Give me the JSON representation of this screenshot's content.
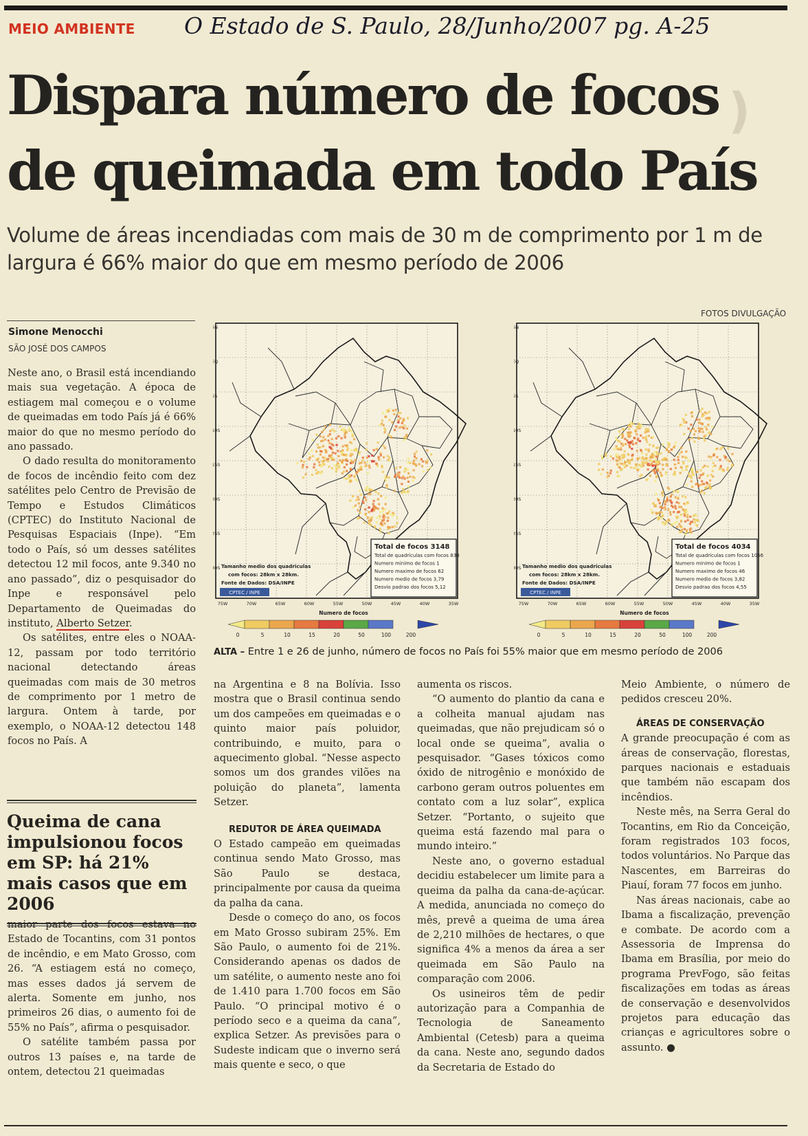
{
  "header": {
    "section": "MEIO AMBIENTE",
    "handwritten_note": "O Estado de S. Paulo, 28/Junho/2007    pg. A-25"
  },
  "headline": "Dispara número de focos de queimada em todo País",
  "subheadline": "Volume de áreas incendiadas com mais de 30 m de comprimento por 1 m de largura é 66% maior do que em mesmo período de 2006",
  "photo_credit": "FOTOS DIVULGAÇÃO",
  "byline": {
    "author": "Simone Menocchi",
    "place": "SÃO JOSÉ DOS CAMPOS"
  },
  "col1_top": [
    "Neste ano, o Brasil está incendiando mais sua vegetação. A época de estiagem mal começou e o volume de queimadas em todo País já é 66% maior do que no mesmo período do ano passado.",
    "O dado resulta do monitoramento de focos de incêndio feito com dez satélites pelo Centro de Previsão de Tempo e Estudos Climáticos (CPTEC) do Instituto Nacional de Pesquisas Espaciais (Inpe). “Em todo o País, só um desses satélites detectou 12 mil focos, ante 9.340 no ano passado”, diz o pesquisador do Inpe e responsável pelo Departamento de Queimadas do instituto,",
    "Alberto Setzer",
    "Os satélites, entre eles o NOAA-12, passam por todo território nacional detectando áreas queimadas com mais de 30 metros de comprimento por 1 metro de largura. Ontem à tarde, por exemplo, o NOAA-12 detectou 148 focos no País. A"
  ],
  "pull_quote": "Queima de cana impulsionou focos em SP: há 21% mais casos que em 2006",
  "col1_bottom": [
    "maior parte dos focos estava no Estado de Tocantins, com 31 pontos de incêndio, e em Mato Grosso, com 26. “A estiagem está no começo, mas esses dados já servem de alerta. Somente em junho, nos primeiros 26 dias, o aumento foi de 55% no País”, afirma o pesquisador.",
    "O satélite também passa por outros 13 países e, na tarde de ontem, detectou 21 queimadas"
  ],
  "col2": [
    "na Argentina e 8 na Bolívia. Isso mostra que o Brasil continua sendo um dos campeões em queimadas e o quinto maior país poluidor, contribuindo, e muito, para o aquecimento global. “Nesse aspecto somos um dos grandes vilões na poluição do planeta”, lamenta Setzer.",
    "REDUTOR DE ÁREA QUEIMADA",
    "O Estado campeão em queimadas continua sendo Mato Grosso, mas São Paulo se destaca, principalmente por causa da queima da palha da cana.",
    "Desde o começo do ano, os focos em Mato Grosso subiram 25%. Em São Paulo, o aumento foi de 21%. Considerando apenas os dados de um satélite, o aumento neste ano foi de 1.410 para 1.700 focos em São Paulo. “O principal motivo é o período seco e a queima da cana”, explica Setzer. As previsões para o Sudeste indicam que o inverno será mais quente e seco, o que"
  ],
  "col3": [
    "aumenta os riscos.",
    "“O aumento do plantio da cana e a colheita manual ajudam nas queimadas, que não prejudicam só o local onde se queima”, avalia o pesquisador. “Gases tóxicos como óxido de nitrogênio e monóxido de carbono geram outros poluentes em contato com a luz solar”, explica Setzer. “Portanto, o sujeito que queima está fazendo mal para o mundo inteiro.”",
    "Neste ano, o governo estadual decidiu estabelecer um limite para a queima da palha da cana-de-açúcar. A medida, anunciada no começo do mês, prevê a queima de uma área de 2,210 milhões de hectares, o que significa 4% a menos da área a ser queimada em São Paulo na comparação com 2006.",
    "Os usineiros têm de pedir autorização para a Companhia de Tecnologia de Saneamento Ambiental (Cetesb) para a queima da cana. Neste ano, segundo dados da Secretaria de Estado do"
  ],
  "col4": [
    "Meio Ambiente, o número de pedidos cresceu 20%.",
    "ÁREAS DE CONSERVAÇÃO",
    "A grande preocupação é com as áreas de conservação, florestas, parques nacionais e estaduais que também não escapam dos incêndios.",
    "Neste mês, na Serra Geral do Tocantins, em Rio da Conceição, foram registrados 103 focos, todos voluntários. No Parque das Nascentes, em Barreiras do Piauí, foram 77 focos em junho.",
    "Nas áreas nacionais, cabe ao Ibama a fiscalização, prevenção e combate. De acordo com a Assessoria de Imprensa do Ibama em Brasília, por meio do programa PrevFogo, são feitas fiscalizações em todas as áreas de conservação e desenvolvidos projetos para educação das crianças e agricultores sobre o assunto. ●"
  ],
  "maps": [
    {
      "stats_title": "Total de focos 3148",
      "stats": [
        "Total de quadrículas com focos 830",
        "Numero minimo de focos 1",
        "Numero maximo de focos 62",
        "Numero medio de focos 3,79",
        "Desvio padrao dos focos 5,12"
      ],
      "grid_note": [
        "Tamanho medio dos quadriculas",
        "com focos: 28km x 28km."
      ],
      "source": "Fonte de Dados: DSA/INPE",
      "logo": "CPTEC / INPE"
    },
    {
      "stats_title": "Total de focos 4034",
      "stats": [
        "Total de quadrículas com focos 1056",
        "Numero minimo de focos 1",
        "Numero maximo de focos 46",
        "Numero medio de focos 3,82",
        "Desvio padrao dos focos 4,55"
      ],
      "grid_note": [
        "Tamanho medio dos quadriculas",
        "com focos: 28km x 28km."
      ],
      "source": "Fonte de Dados: DSA/INPE",
      "logo": "CPTEC / INPE"
    }
  ],
  "map_common": {
    "lat_labels": [
      "5N",
      "EQ",
      "5S",
      "10S",
      "15S",
      "20S",
      "25S",
      "30S"
    ],
    "lon_labels": [
      "75W",
      "70W",
      "65W",
      "60W",
      "55W",
      "50W",
      "45W",
      "40W",
      "35W"
    ],
    "legend_title": "Numero de focos",
    "legend_ticks": [
      "0",
      "5",
      "10",
      "15",
      "20",
      "50",
      "100",
      "200"
    ],
    "legend_colors": [
      "#f3ea86",
      "#efcb62",
      "#eba74e",
      "#e67a41",
      "#d8423a",
      "#5aa848",
      "#5a78c7",
      "#2e46a8"
    ]
  },
  "caption": {
    "label": "ALTA –",
    "text": "Entre 1 e 26 de junho, número de focos no País foi 55% maior que em mesmo período de 2006"
  }
}
